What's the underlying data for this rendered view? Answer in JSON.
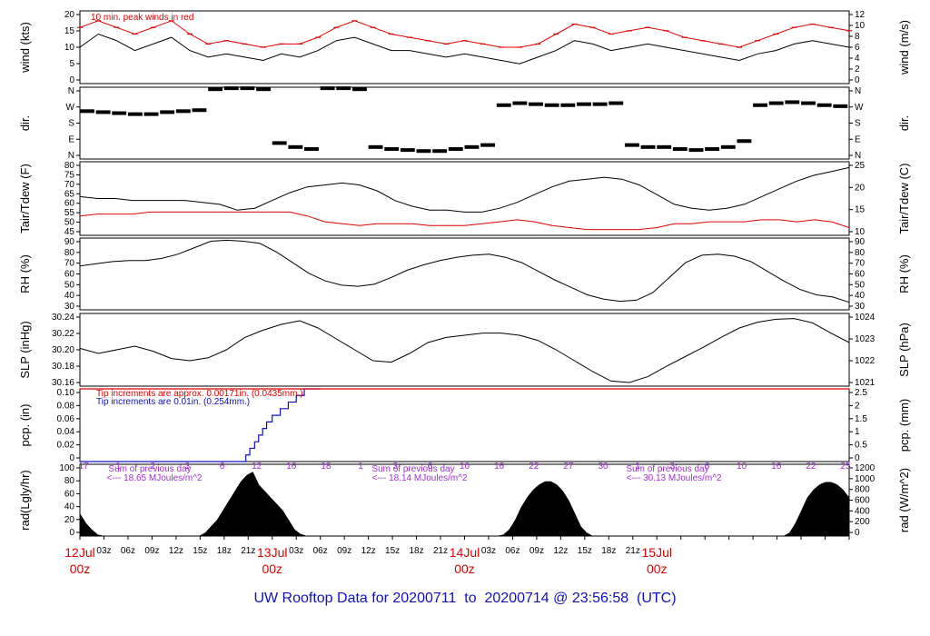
{
  "caption": "UW Rooftop Data for 20200711  to  20200714 @ 23:56:58  (UTC)",
  "colors": {
    "red": "#e00000",
    "blue": "#1010c0",
    "purple": "#a030d0",
    "black": "#000000"
  },
  "x_axis": {
    "hours_labels": [
      "03z",
      "06z",
      "09z",
      "12z",
      "15z",
      "18z",
      "21z",
      "03z",
      "06z",
      "09z",
      "12z",
      "15z",
      "18z",
      "21z",
      "03z",
      "06z",
      "09z",
      "12z",
      "15z",
      "18z",
      "21z"
    ],
    "day_labels": [
      {
        "date": "12Jul",
        "hour": "00z"
      },
      {
        "date": "13Jul",
        "hour": "00z"
      },
      {
        "date": "14Jul",
        "hour": "00z"
      },
      {
        "date": "15Jul",
        "hour": "00z"
      }
    ]
  },
  "chart_data": [
    {
      "type": "line",
      "ylabel_left": "wind (kts)",
      "ylabel_right": "wind (m/s)",
      "left_ticks": [
        "0",
        "5",
        "10",
        "15",
        "20"
      ],
      "right_ticks": [
        "0",
        "2",
        "4",
        "6",
        "8",
        "10",
        "12"
      ],
      "ylim": [
        0,
        22
      ],
      "annotation": "10 min. peak winds in red",
      "series": [
        {
          "color": "#000000",
          "values": [
            11,
            15,
            13,
            10,
            12,
            14,
            10,
            8,
            9,
            8,
            7,
            9,
            8,
            10,
            13,
            14,
            12,
            10,
            10,
            9,
            8,
            9,
            8,
            7,
            6,
            8,
            10,
            13,
            12,
            10,
            11,
            12,
            11,
            10,
            9,
            8,
            7,
            9,
            10,
            12,
            13,
            12,
            11
          ]
        },
        {
          "color": "#e00000",
          "values": [
            17,
            19,
            17,
            15,
            17,
            19,
            15,
            12,
            13,
            12,
            11,
            12,
            12,
            14,
            17,
            19,
            17,
            15,
            14,
            13,
            12,
            13,
            12,
            11,
            11,
            12,
            15,
            18,
            17,
            15,
            16,
            17,
            16,
            14,
            13,
            12,
            11,
            13,
            15,
            17,
            18,
            17,
            16
          ]
        }
      ]
    },
    {
      "type": "scatter",
      "ylabel_left": "dir.",
      "ylabel_right": "dir.",
      "left_ticks": [
        "N",
        "E",
        "S",
        "W",
        "N"
      ],
      "right_ticks": [
        "N",
        "E",
        "S",
        "W",
        "N"
      ],
      "ylim": [
        0,
        360
      ],
      "x": [
        0,
        2,
        4,
        6,
        8,
        10,
        12,
        14,
        16,
        18,
        20,
        22,
        24,
        26,
        28,
        30,
        32,
        34,
        36,
        38,
        40,
        42,
        44,
        46,
        48,
        50,
        52,
        54,
        56,
        58,
        60,
        62,
        64,
        66,
        68,
        70,
        72,
        74,
        76,
        78,
        80,
        82,
        84,
        86,
        88,
        90,
        92,
        94
      ],
      "values": [
        240,
        235,
        230,
        225,
        225,
        235,
        240,
        245,
        350,
        355,
        355,
        350,
        80,
        60,
        50,
        355,
        355,
        350,
        60,
        50,
        45,
        40,
        40,
        50,
        60,
        70,
        270,
        280,
        275,
        270,
        270,
        275,
        275,
        280,
        70,
        60,
        60,
        50,
        45,
        50,
        60,
        90,
        270,
        280,
        285,
        280,
        270,
        265
      ]
    },
    {
      "type": "line",
      "ylabel_left": "Tair/Tdew (F)",
      "ylabel_right": "Tair/Tdew (C)",
      "left_ticks": [
        "45",
        "50",
        "55",
        "60",
        "65",
        "70",
        "75",
        "80"
      ],
      "right_ticks": [
        "10",
        "15",
        "20",
        "25"
      ],
      "ylim": [
        43,
        81
      ],
      "series": [
        {
          "color": "#000000",
          "values": [
            63,
            62,
            62,
            61,
            61,
            61,
            61,
            60,
            59,
            56,
            57,
            61,
            65,
            68,
            69,
            70,
            69,
            66,
            61,
            58,
            56,
            56,
            55,
            55,
            57,
            60,
            64,
            68,
            71,
            72,
            73,
            72,
            69,
            64,
            59,
            57,
            56,
            57,
            59,
            63,
            67,
            71,
            74,
            76,
            78
          ]
        },
        {
          "color": "#e00000",
          "values": [
            53,
            54,
            54,
            54,
            55,
            55,
            55,
            55,
            55,
            55,
            55,
            55,
            55,
            53,
            50,
            49,
            48,
            49,
            49,
            49,
            48,
            48,
            48,
            49,
            50,
            51,
            50,
            48,
            47,
            46,
            46,
            46,
            46,
            47,
            49,
            49,
            50,
            50,
            50,
            51,
            51,
            50,
            51,
            50,
            47
          ]
        }
      ]
    },
    {
      "type": "line",
      "ylabel_left": "RH (%)",
      "ylabel_right": "RH (%)",
      "left_ticks": [
        "30",
        "40",
        "50",
        "60",
        "70",
        "80",
        "90"
      ],
      "right_ticks": [
        "30",
        "40",
        "50",
        "60",
        "70",
        "80",
        "90"
      ],
      "ylim": [
        28,
        95
      ],
      "series": [
        {
          "color": "#000000",
          "values": [
            69,
            71,
            73,
            74,
            74,
            76,
            80,
            86,
            92,
            93,
            92,
            90,
            82,
            72,
            62,
            55,
            51,
            50,
            52,
            58,
            65,
            70,
            74,
            77,
            79,
            80,
            77,
            72,
            64,
            56,
            49,
            42,
            38,
            36,
            37,
            44,
            58,
            72,
            79,
            80,
            78,
            73,
            64,
            55,
            47,
            42,
            40,
            35
          ]
        }
      ]
    },
    {
      "type": "line",
      "ylabel_left": "SLP (inHg)",
      "ylabel_right": "SLP (hPa)",
      "left_ticks": [
        "30.16",
        "30.18",
        "30.20",
        "30.22",
        "30.24"
      ],
      "right_ticks": [
        "1021",
        "1022",
        "1023",
        "1024"
      ],
      "ylim": [
        30.145,
        30.245
      ],
      "series": [
        {
          "color": "#000000",
          "values": [
            30.197,
            30.19,
            30.195,
            30.2,
            30.193,
            30.183,
            30.18,
            30.184,
            30.195,
            30.212,
            30.222,
            30.23,
            30.235,
            30.225,
            30.21,
            30.195,
            30.18,
            30.178,
            30.19,
            30.205,
            30.212,
            30.215,
            30.218,
            30.218,
            30.215,
            30.208,
            30.195,
            30.18,
            30.165,
            30.152,
            30.15,
            30.158,
            30.172,
            30.185,
            30.198,
            30.212,
            30.225,
            30.233,
            30.237,
            30.238,
            30.232,
            30.218,
            30.205
          ]
        }
      ]
    },
    {
      "type": "line",
      "ylabel_left": "pcp. (in)",
      "ylabel_right": "pcp. (mm)",
      "left_ticks": [
        "0",
        "0.02",
        "0.04",
        "0.06",
        "0.08",
        "0.10"
      ],
      "right_ticks": [
        "0",
        "0.5",
        "1",
        "1.5",
        "2",
        "2.5"
      ],
      "ylim": [
        0,
        0.11
      ],
      "annotations": [
        "Tip increments are approx. 0.00171in. (0.0435mm.)",
        "Tip increments are 0.01in. (0.254mm.)"
      ],
      "series": [
        {
          "color": "#1010c0",
          "x": [
            0,
            20,
            20.7,
            21.2,
            21.8,
            22.3,
            22.8,
            23.3,
            24,
            25,
            26,
            27,
            28,
            29,
            30
          ],
          "values": [
            0,
            0,
            0.01,
            0.02,
            0.03,
            0.04,
            0.05,
            0.06,
            0.07,
            0.08,
            0.09,
            0.1,
            0.11,
            0.11,
            0.11
          ]
        },
        {
          "color": "#e00000",
          "x": [
            0,
            96
          ],
          "values": [
            0.11,
            0.11
          ]
        }
      ]
    },
    {
      "type": "area",
      "ylabel_left": "rad(Lgly/hr)",
      "ylabel_right": "rad (W/m^2)",
      "left_ticks": [
        "0",
        "20",
        "40",
        "60",
        "80",
        "100"
      ],
      "right_ticks": [
        "0",
        "200",
        "400",
        "600",
        "800",
        "1000",
        "1200"
      ],
      "ylim": [
        0,
        112
      ],
      "sunhour_labels": [
        "17",
        "1",
        "2",
        "3",
        "6",
        "12",
        "16",
        "18",
        "1",
        "3",
        "6",
        "10",
        "16",
        "22",
        "27",
        "30",
        "1",
        "3",
        "6",
        "10",
        "16",
        "22",
        "25"
      ],
      "daily_sums": [
        {
          "title": "Sum of previous day",
          "value": "<--- 18.65 MJoules/m^2"
        },
        {
          "title": "Sum of previous day",
          "value": "<--- 18.14 MJoules/m^2"
        },
        {
          "title": "Sum of previous day",
          "value": "<--- 30.13 MJoules/m^2"
        }
      ],
      "series": [
        {
          "color": "#000000",
          "values": [
            35,
            20,
            10,
            2,
            0,
            0,
            0,
            0,
            0,
            0,
            0,
            0,
            0,
            0,
            0,
            0,
            0,
            0,
            0,
            0,
            0,
            5,
            15,
            25,
            40,
            55,
            70,
            85,
            95,
            100,
            80,
            70,
            60,
            50,
            40,
            25,
            10,
            3,
            0,
            0,
            0,
            0,
            0,
            0,
            0,
            0,
            0,
            0,
            0,
            0,
            0,
            0,
            0,
            0,
            0,
            0,
            0,
            0,
            0,
            0,
            0,
            0,
            0,
            0,
            0,
            0,
            0,
            0,
            0,
            0,
            0,
            2,
            10,
            25,
            45,
            60,
            72,
            80,
            85,
            85,
            80,
            70,
            55,
            35,
            15,
            5,
            0,
            0,
            0,
            0,
            0,
            0,
            0,
            0,
            0,
            0,
            0,
            0,
            0,
            0,
            0,
            0,
            0,
            0,
            0,
            0,
            0,
            0,
            0,
            0,
            0,
            0,
            0,
            0,
            0,
            0,
            0,
            0,
            0,
            5,
            20,
            40,
            60,
            72,
            80,
            84,
            84,
            80,
            72,
            60
          ]
        }
      ]
    }
  ]
}
